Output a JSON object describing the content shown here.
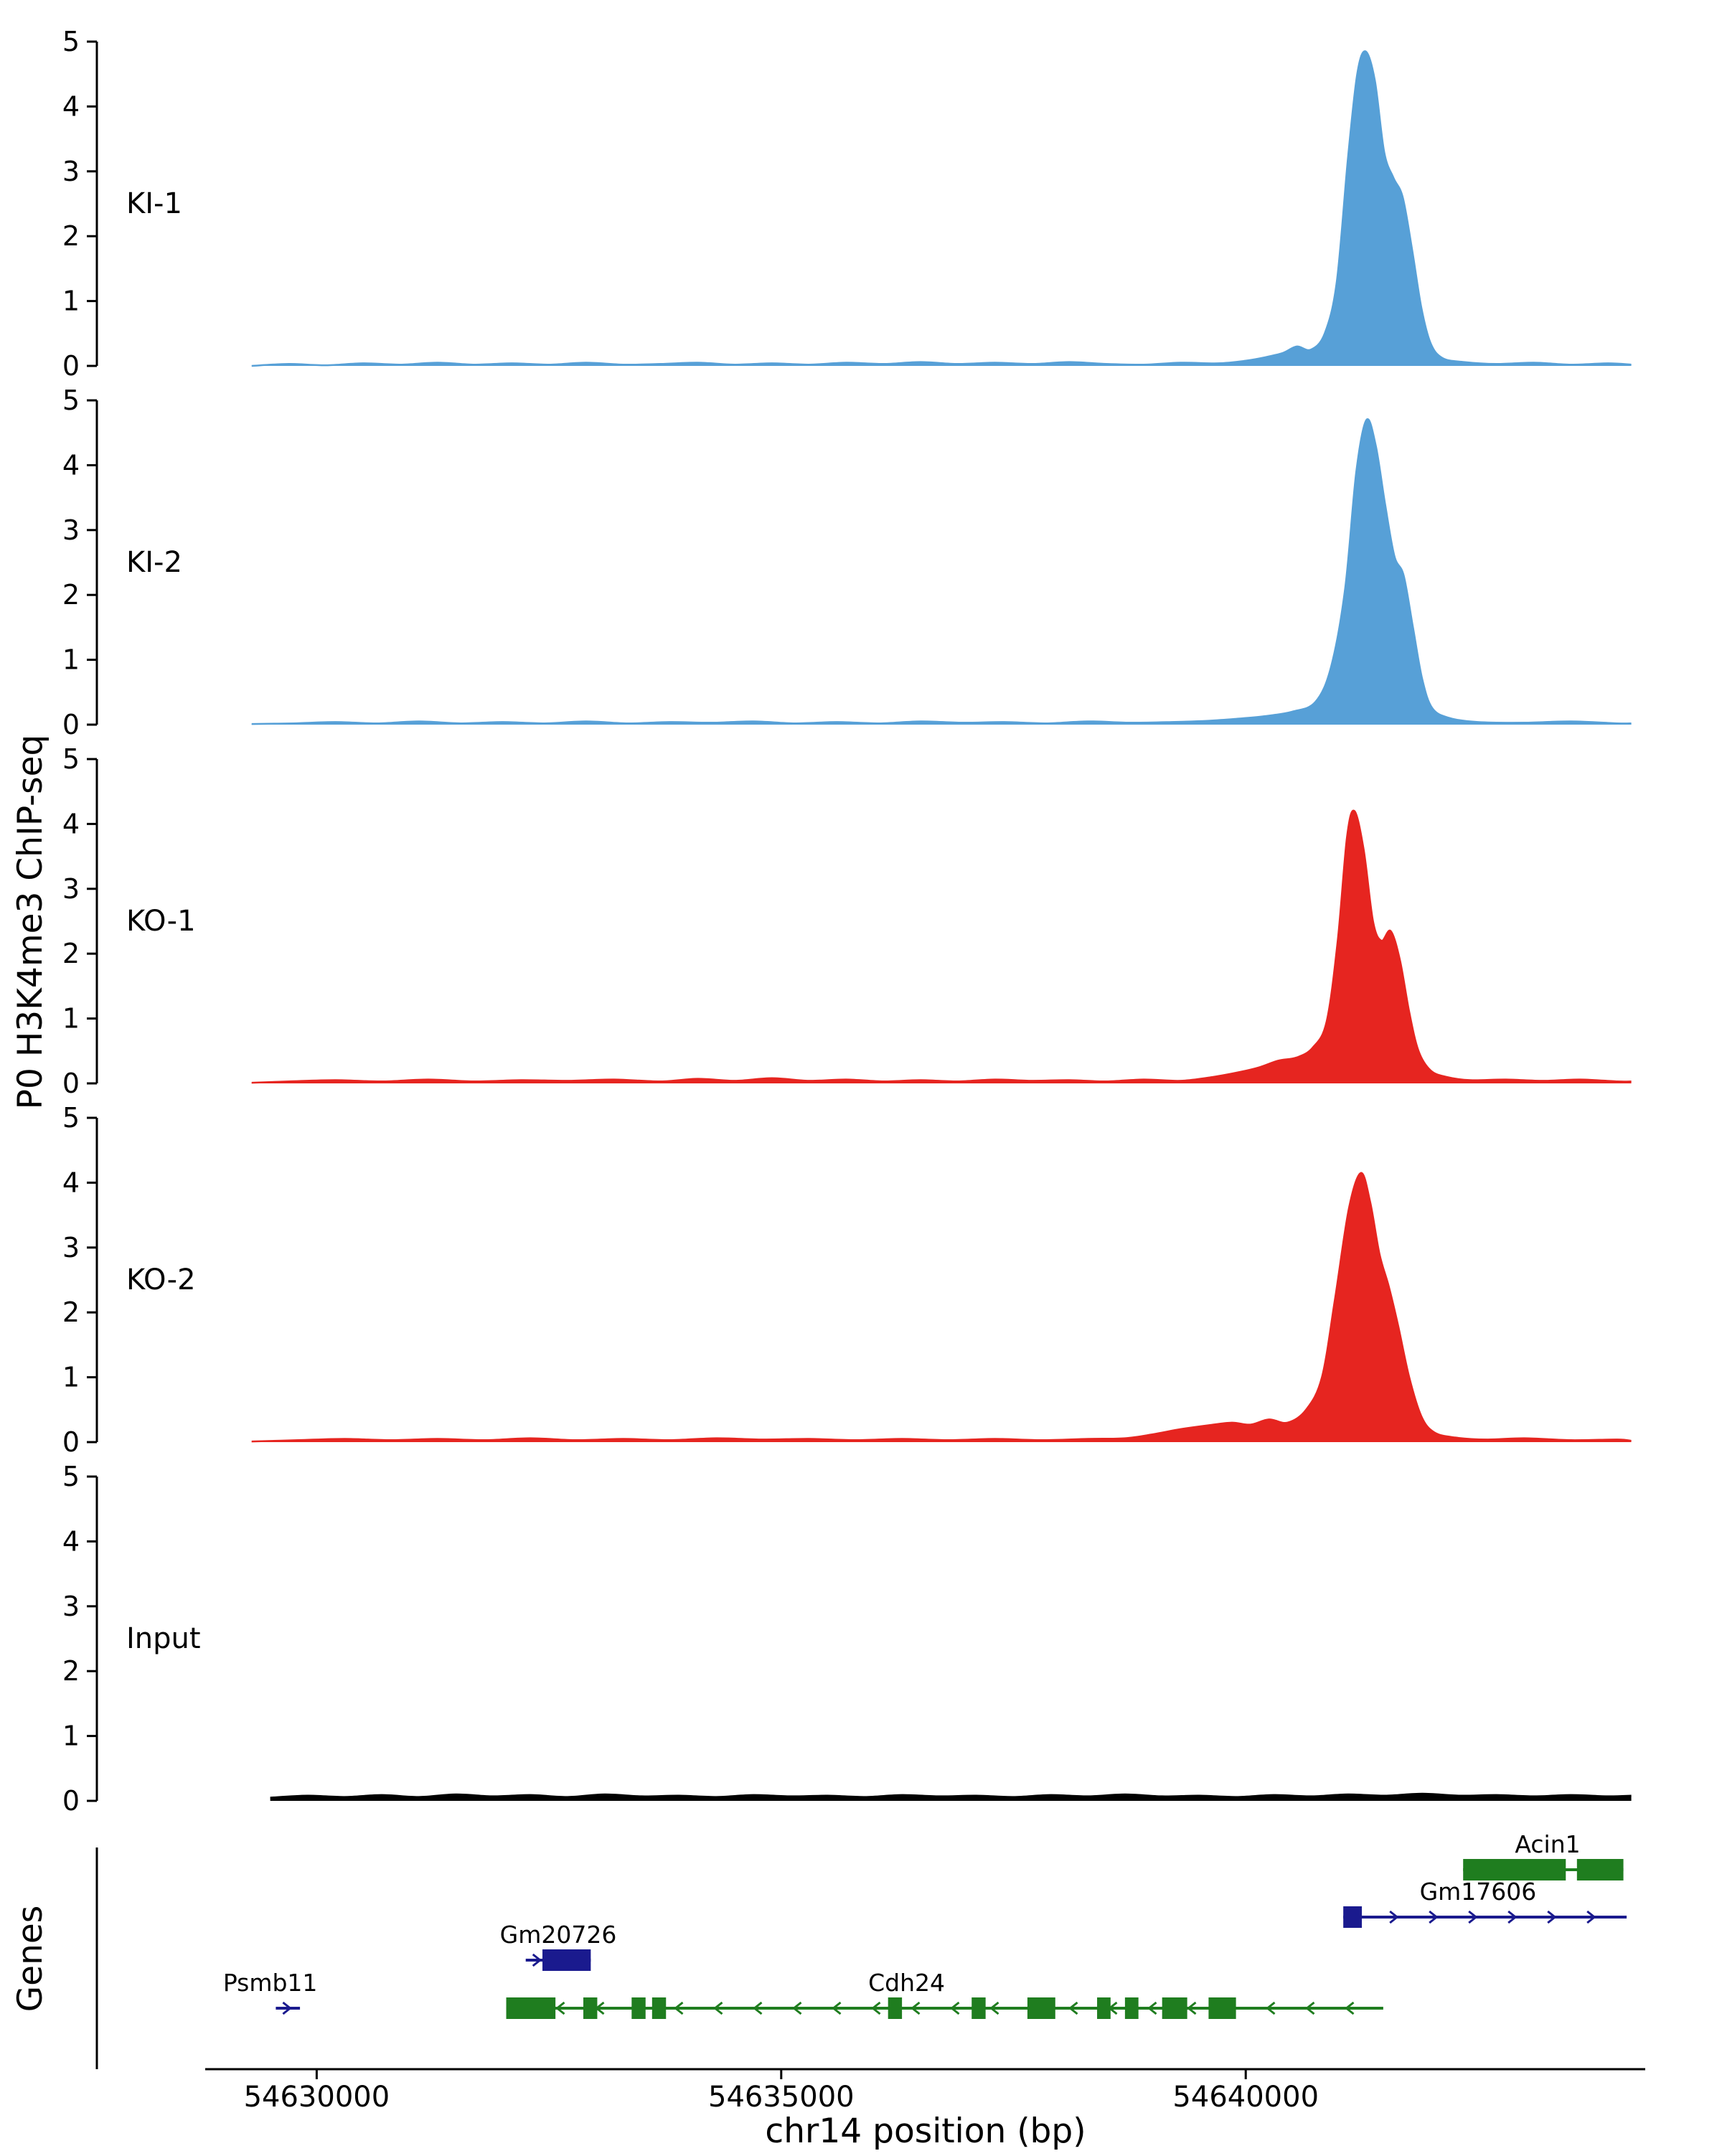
{
  "figure": {
    "y_axis_label": "P0 H3K4me3 ChIP-seq",
    "x_axis_label": "chr14 position (bp)",
    "genes_axis_label": "Genes"
  },
  "chart_data": {
    "type": "area",
    "title": "",
    "xlabel": "chr14 position (bp)",
    "ylabel": "P0 H3K4me3 ChIP-seq",
    "x_range": [
      54628800,
      54644300
    ],
    "x_ticks": [
      54630000,
      54635000,
      54640000
    ],
    "ylim": [
      0,
      5
    ],
    "y_ticks": [
      0,
      1,
      2,
      3,
      4,
      5
    ],
    "tracks": [
      {
        "name": "KI-1",
        "color": "#57a0d7",
        "points": [
          [
            54629300,
            0
          ],
          [
            54629700,
            0.03
          ],
          [
            54630100,
            0.01
          ],
          [
            54630500,
            0.04
          ],
          [
            54630900,
            0.02
          ],
          [
            54631300,
            0.05
          ],
          [
            54631700,
            0.02
          ],
          [
            54632100,
            0.04
          ],
          [
            54632500,
            0.02
          ],
          [
            54632900,
            0.05
          ],
          [
            54633300,
            0.02
          ],
          [
            54633700,
            0.03
          ],
          [
            54634100,
            0.05
          ],
          [
            54634500,
            0.02
          ],
          [
            54634900,
            0.04
          ],
          [
            54635300,
            0.02
          ],
          [
            54635700,
            0.05
          ],
          [
            54636100,
            0.03
          ],
          [
            54636500,
            0.06
          ],
          [
            54636900,
            0.03
          ],
          [
            54637300,
            0.05
          ],
          [
            54637700,
            0.03
          ],
          [
            54638100,
            0.06
          ],
          [
            54638500,
            0.03
          ],
          [
            54638900,
            0.02
          ],
          [
            54639300,
            0.05
          ],
          [
            54639700,
            0.04
          ],
          [
            54640000,
            0.08
          ],
          [
            54640200,
            0.13
          ],
          [
            54640400,
            0.2
          ],
          [
            54640550,
            0.3
          ],
          [
            54640700,
            0.25
          ],
          [
            54640850,
            0.5
          ],
          [
            54640980,
            1.3
          ],
          [
            54641100,
            3.2
          ],
          [
            54641200,
            4.5
          ],
          [
            54641290,
            4.85
          ],
          [
            54641390,
            4.4
          ],
          [
            54641490,
            3.3
          ],
          [
            54641590,
            2.9
          ],
          [
            54641690,
            2.6
          ],
          [
            54641790,
            1.8
          ],
          [
            54641890,
            0.9
          ],
          [
            54641990,
            0.35
          ],
          [
            54642120,
            0.12
          ],
          [
            54642350,
            0.06
          ],
          [
            54642700,
            0.03
          ],
          [
            54643100,
            0.05
          ],
          [
            54643500,
            0.02
          ],
          [
            54643900,
            0.04
          ],
          [
            54644150,
            0.02
          ]
        ]
      },
      {
        "name": "KI-2",
        "color": "#57a0d7",
        "points": [
          [
            54629300,
            0.01
          ],
          [
            54629750,
            0.02
          ],
          [
            54630200,
            0.04
          ],
          [
            54630650,
            0.02
          ],
          [
            54631100,
            0.05
          ],
          [
            54631550,
            0.02
          ],
          [
            54632000,
            0.04
          ],
          [
            54632450,
            0.02
          ],
          [
            54632900,
            0.05
          ],
          [
            54633350,
            0.02
          ],
          [
            54633800,
            0.04
          ],
          [
            54634250,
            0.03
          ],
          [
            54634700,
            0.05
          ],
          [
            54635150,
            0.02
          ],
          [
            54635600,
            0.04
          ],
          [
            54636050,
            0.02
          ],
          [
            54636500,
            0.05
          ],
          [
            54636950,
            0.03
          ],
          [
            54637400,
            0.04
          ],
          [
            54637850,
            0.02
          ],
          [
            54638300,
            0.05
          ],
          [
            54638750,
            0.03
          ],
          [
            54639200,
            0.04
          ],
          [
            54639600,
            0.06
          ],
          [
            54639900,
            0.09
          ],
          [
            54640200,
            0.13
          ],
          [
            54640500,
            0.2
          ],
          [
            54640750,
            0.35
          ],
          [
            54640920,
            0.9
          ],
          [
            54641070,
            2.1
          ],
          [
            54641190,
            3.9
          ],
          [
            54641300,
            4.7
          ],
          [
            54641400,
            4.3
          ],
          [
            54641500,
            3.4
          ],
          [
            54641600,
            2.6
          ],
          [
            54641700,
            2.3
          ],
          [
            54641800,
            1.5
          ],
          [
            54641900,
            0.7
          ],
          [
            54642010,
            0.25
          ],
          [
            54642200,
            0.1
          ],
          [
            54642500,
            0.04
          ],
          [
            54643000,
            0.03
          ],
          [
            54643500,
            0.05
          ],
          [
            54644000,
            0.02
          ],
          [
            54644150,
            0.02
          ]
        ]
      },
      {
        "name": "KO-1",
        "color": "#e62520",
        "points": [
          [
            54629300,
            0.01
          ],
          [
            54629700,
            0.03
          ],
          [
            54630200,
            0.05
          ],
          [
            54630700,
            0.03
          ],
          [
            54631200,
            0.06
          ],
          [
            54631700,
            0.03
          ],
          [
            54632200,
            0.05
          ],
          [
            54632700,
            0.04
          ],
          [
            54633200,
            0.06
          ],
          [
            54633700,
            0.03
          ],
          [
            54634100,
            0.07
          ],
          [
            54634500,
            0.04
          ],
          [
            54634900,
            0.08
          ],
          [
            54635300,
            0.04
          ],
          [
            54635700,
            0.06
          ],
          [
            54636100,
            0.03
          ],
          [
            54636500,
            0.05
          ],
          [
            54636900,
            0.03
          ],
          [
            54637300,
            0.06
          ],
          [
            54637700,
            0.04
          ],
          [
            54638100,
            0.05
          ],
          [
            54638500,
            0.03
          ],
          [
            54638900,
            0.06
          ],
          [
            54639300,
            0.04
          ],
          [
            54639650,
            0.1
          ],
          [
            54639950,
            0.18
          ],
          [
            54640150,
            0.25
          ],
          [
            54640350,
            0.35
          ],
          [
            54640550,
            0.4
          ],
          [
            54640720,
            0.55
          ],
          [
            54640870,
            0.95
          ],
          [
            54640990,
            2.2
          ],
          [
            54641090,
            3.8
          ],
          [
            54641170,
            4.2
          ],
          [
            54641270,
            3.6
          ],
          [
            54641370,
            2.5
          ],
          [
            54641460,
            2.2
          ],
          [
            54641560,
            2.35
          ],
          [
            54641660,
            1.9
          ],
          [
            54641760,
            1.1
          ],
          [
            54641860,
            0.5
          ],
          [
            54641990,
            0.2
          ],
          [
            54642160,
            0.1
          ],
          [
            54642420,
            0.05
          ],
          [
            54642800,
            0.06
          ],
          [
            54643200,
            0.04
          ],
          [
            54643600,
            0.06
          ],
          [
            54644000,
            0.03
          ],
          [
            54644150,
            0.03
          ]
        ]
      },
      {
        "name": "KO-2",
        "color": "#e62520",
        "points": [
          [
            54629300,
            0.01
          ],
          [
            54629800,
            0.03
          ],
          [
            54630300,
            0.05
          ],
          [
            54630800,
            0.03
          ],
          [
            54631300,
            0.05
          ],
          [
            54631800,
            0.03
          ],
          [
            54632300,
            0.06
          ],
          [
            54632800,
            0.03
          ],
          [
            54633300,
            0.05
          ],
          [
            54633800,
            0.03
          ],
          [
            54634300,
            0.06
          ],
          [
            54634800,
            0.04
          ],
          [
            54635300,
            0.05
          ],
          [
            54635800,
            0.03
          ],
          [
            54636300,
            0.05
          ],
          [
            54636800,
            0.03
          ],
          [
            54637300,
            0.05
          ],
          [
            54637800,
            0.03
          ],
          [
            54638300,
            0.05
          ],
          [
            54638700,
            0.06
          ],
          [
            54639000,
            0.12
          ],
          [
            54639300,
            0.2
          ],
          [
            54639600,
            0.26
          ],
          [
            54639850,
            0.3
          ],
          [
            54640050,
            0.27
          ],
          [
            54640250,
            0.35
          ],
          [
            54640450,
            0.3
          ],
          [
            54640650,
            0.5
          ],
          [
            54640820,
            1.0
          ],
          [
            54640960,
            2.2
          ],
          [
            54641110,
            3.6
          ],
          [
            54641240,
            4.15
          ],
          [
            54641340,
            3.7
          ],
          [
            54641440,
            2.9
          ],
          [
            54641540,
            2.4
          ],
          [
            54641640,
            1.8
          ],
          [
            54641760,
            1.0
          ],
          [
            54641890,
            0.4
          ],
          [
            54642030,
            0.15
          ],
          [
            54642260,
            0.07
          ],
          [
            54642600,
            0.04
          ],
          [
            54643000,
            0.06
          ],
          [
            54643500,
            0.03
          ],
          [
            54644000,
            0.04
          ],
          [
            54644150,
            0.02
          ]
        ]
      },
      {
        "name": "Input",
        "color": "#000000",
        "points": [
          [
            54629500,
            0.05
          ],
          [
            54629900,
            0.08
          ],
          [
            54630300,
            0.06
          ],
          [
            54630700,
            0.09
          ],
          [
            54631100,
            0.06
          ],
          [
            54631500,
            0.1
          ],
          [
            54631900,
            0.07
          ],
          [
            54632300,
            0.09
          ],
          [
            54632700,
            0.06
          ],
          [
            54633100,
            0.1
          ],
          [
            54633500,
            0.07
          ],
          [
            54633900,
            0.08
          ],
          [
            54634300,
            0.06
          ],
          [
            54634700,
            0.09
          ],
          [
            54635100,
            0.07
          ],
          [
            54635500,
            0.08
          ],
          [
            54635900,
            0.06
          ],
          [
            54636300,
            0.09
          ],
          [
            54636700,
            0.07
          ],
          [
            54637100,
            0.08
          ],
          [
            54637500,
            0.06
          ],
          [
            54637900,
            0.09
          ],
          [
            54638300,
            0.07
          ],
          [
            54638700,
            0.1
          ],
          [
            54639100,
            0.07
          ],
          [
            54639500,
            0.08
          ],
          [
            54639900,
            0.06
          ],
          [
            54640300,
            0.09
          ],
          [
            54640700,
            0.07
          ],
          [
            54641100,
            0.1
          ],
          [
            54641500,
            0.08
          ],
          [
            54641900,
            0.11
          ],
          [
            54642300,
            0.08
          ],
          [
            54642700,
            0.09
          ],
          [
            54643100,
            0.07
          ],
          [
            54643500,
            0.09
          ],
          [
            54643900,
            0.07
          ],
          [
            54644150,
            0.08
          ]
        ]
      }
    ],
    "genes": [
      {
        "name": "Acin1",
        "color": "#1f7d1f",
        "row": 0,
        "strand": "+",
        "arrows": "none",
        "line": [
          54642340,
          54644065
        ],
        "exons": [
          [
            54642340,
            54643445
          ],
          [
            54643565,
            54644065
          ]
        ],
        "label_x": 54643250
      },
      {
        "name": "Gm17606",
        "color": "#1a1a8e",
        "row": 1,
        "strand": "+",
        "arrows": "right",
        "line": [
          54641050,
          54644100
        ],
        "exons": [
          [
            54641050,
            54641250
          ]
        ],
        "label_x": 54642500
      },
      {
        "name": "Gm20726",
        "color": "#1a1a8e",
        "row": 2,
        "strand": "+",
        "arrows": "right",
        "line": [
          54632250,
          54632950
        ],
        "exons": [
          [
            54632430,
            54632950
          ]
        ],
        "label_x": 54632600
      },
      {
        "name": "Psmb11",
        "color": "#1a1a8e",
        "row": 3,
        "strand": "+",
        "arrows": "right",
        "line": [
          54629560,
          54629820
        ],
        "exons": [],
        "label_x": 54629500
      },
      {
        "name": "Cdh24",
        "color": "#1f7d1f",
        "row": 3,
        "strand": "-",
        "arrows": "left",
        "line": [
          54632040,
          54641480
        ],
        "exons": [
          [
            54632040,
            54632570
          ],
          [
            54632870,
            54633020
          ],
          [
            54633390,
            54633540
          ],
          [
            54633610,
            54633760
          ],
          [
            54636150,
            54636300
          ],
          [
            54637050,
            54637200
          ],
          [
            54637650,
            54637950
          ],
          [
            54638400,
            54638545
          ],
          [
            54638700,
            54638845
          ],
          [
            54639100,
            54639370
          ],
          [
            54639600,
            54639895
          ]
        ],
        "label_x": 54636350
      }
    ]
  }
}
